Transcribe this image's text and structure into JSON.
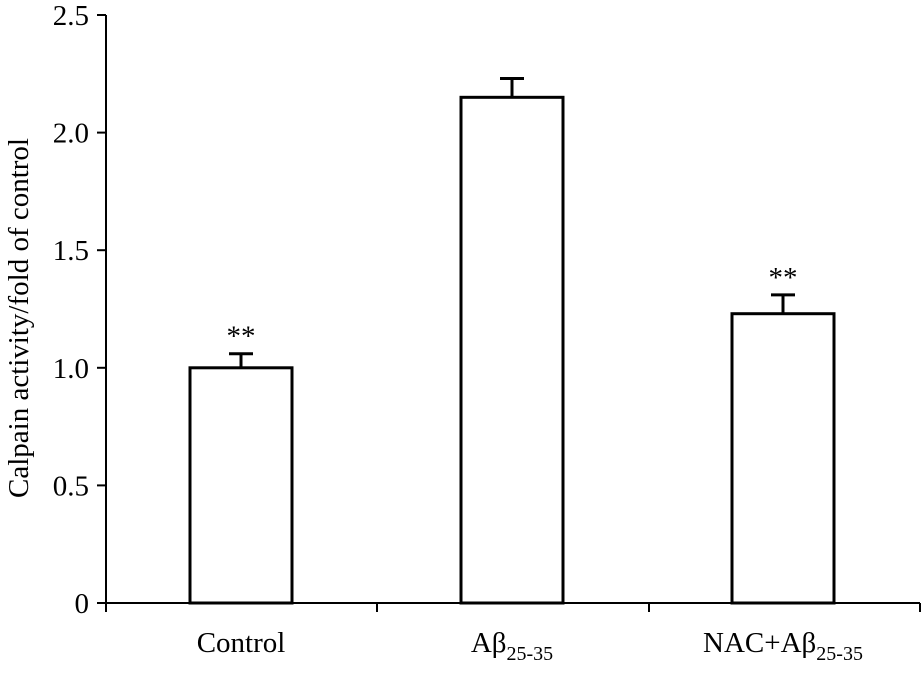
{
  "chart_data": {
    "type": "bar",
    "title": "",
    "xlabel": "",
    "ylabel": "Calpain activity/fold of control",
    "ylim": [
      0,
      2.5
    ],
    "yticks": [
      0,
      0.5,
      1.0,
      1.5,
      2.0,
      2.5
    ],
    "ytick_labels": [
      "0",
      "0.5",
      "1.0",
      "1.5",
      "2.0",
      "2.5"
    ],
    "categories": [
      {
        "label": "Control",
        "base": "Control",
        "sub": ""
      },
      {
        "label": "Aβ25-35",
        "base": "Aβ",
        "sub": "25-35"
      },
      {
        "label": "NAC+Aβ25-35",
        "base": "NAC+Aβ",
        "sub": "25-35"
      }
    ],
    "values": [
      1.0,
      2.15,
      1.23
    ],
    "errors": [
      0.06,
      0.08,
      0.08
    ],
    "annotations": [
      "**",
      "",
      "**"
    ],
    "bar_fill": "#ffffff",
    "bar_stroke": "#000000"
  }
}
